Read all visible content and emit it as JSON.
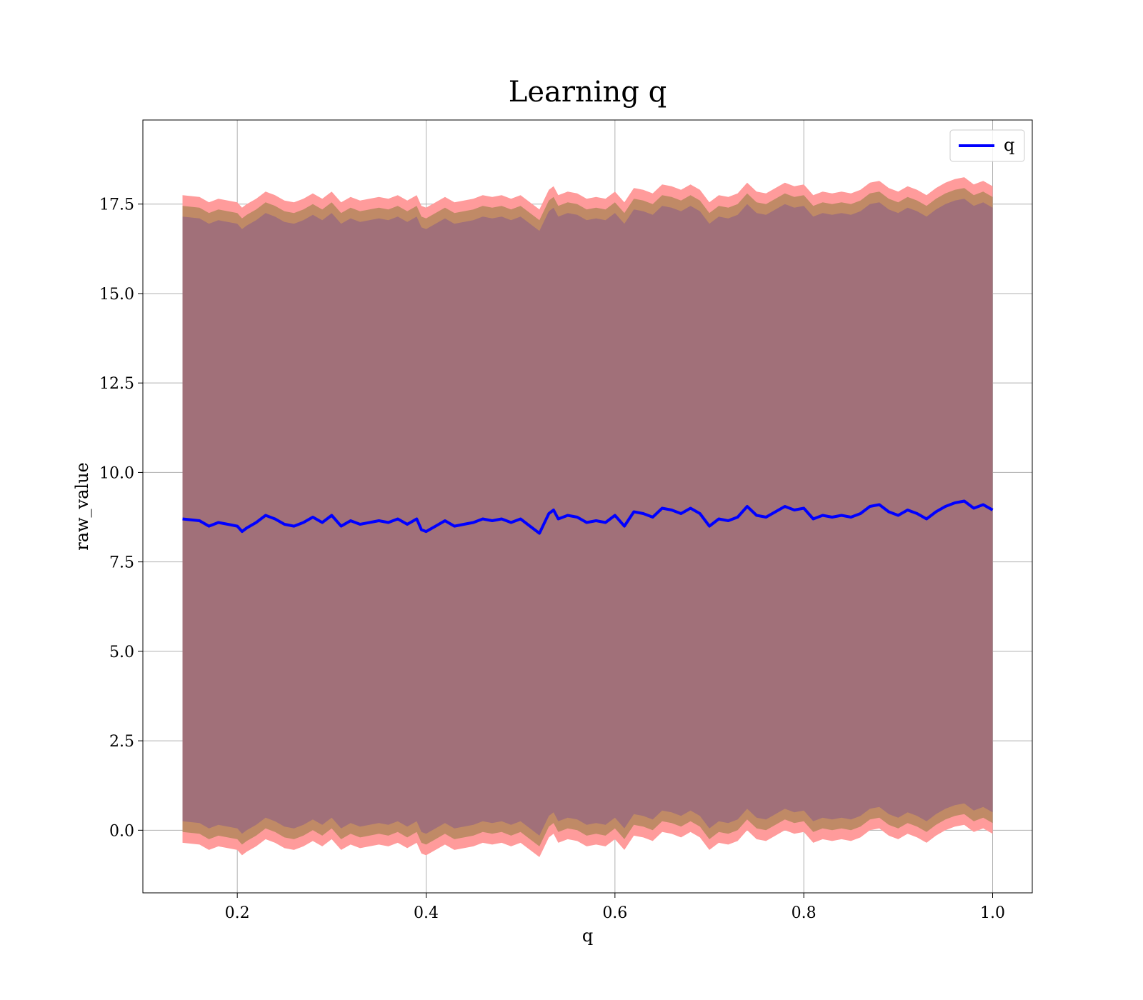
{
  "chart_data": {
    "type": "line",
    "title": "Learning q",
    "xlabel": "q",
    "ylabel": "raw_value",
    "xlim": [
      0.1,
      1.042
    ],
    "ylim": [
      -1.75,
      19.85
    ],
    "xticks": [
      0.2,
      0.4,
      0.6,
      0.8,
      1.0
    ],
    "xtick_labels": [
      "0.2",
      "0.4",
      "0.6",
      "0.8",
      "1.0"
    ],
    "yticks": [
      0.0,
      2.5,
      5.0,
      7.5,
      10.0,
      12.5,
      15.0,
      17.5
    ],
    "ytick_labels": [
      "0.0",
      "2.5",
      "5.0",
      "7.5",
      "10.0",
      "12.5",
      "15.0",
      "17.5"
    ],
    "grid": true,
    "legend": {
      "position": "top-right",
      "entries": [
        "q"
      ]
    },
    "colors": {
      "line": "#0000ff",
      "band_outer": "#ff9b9b",
      "band_middle": "#c08a66",
      "band_inner": "#a17079"
    },
    "band_half_widths": [
      9.05,
      8.75,
      8.45
    ],
    "series": [
      {
        "name": "q",
        "x": [
          0.142,
          0.16,
          0.17,
          0.18,
          0.19,
          0.2,
          0.205,
          0.21,
          0.22,
          0.23,
          0.24,
          0.25,
          0.26,
          0.27,
          0.28,
          0.29,
          0.3,
          0.31,
          0.32,
          0.33,
          0.34,
          0.35,
          0.36,
          0.37,
          0.38,
          0.39,
          0.395,
          0.4,
          0.41,
          0.42,
          0.43,
          0.44,
          0.45,
          0.46,
          0.47,
          0.48,
          0.49,
          0.5,
          0.51,
          0.52,
          0.53,
          0.535,
          0.54,
          0.55,
          0.56,
          0.57,
          0.58,
          0.59,
          0.6,
          0.61,
          0.62,
          0.63,
          0.64,
          0.65,
          0.66,
          0.67,
          0.68,
          0.69,
          0.7,
          0.71,
          0.72,
          0.73,
          0.74,
          0.75,
          0.76,
          0.77,
          0.78,
          0.79,
          0.8,
          0.81,
          0.82,
          0.83,
          0.84,
          0.85,
          0.86,
          0.87,
          0.88,
          0.89,
          0.9,
          0.91,
          0.92,
          0.93,
          0.94,
          0.95,
          0.96,
          0.97,
          0.98,
          0.99,
          1.0
        ],
        "y": [
          8.7,
          8.65,
          8.5,
          8.6,
          8.55,
          8.5,
          8.35,
          8.45,
          8.6,
          8.8,
          8.7,
          8.55,
          8.5,
          8.6,
          8.75,
          8.6,
          8.8,
          8.5,
          8.65,
          8.55,
          8.6,
          8.65,
          8.6,
          8.7,
          8.55,
          8.7,
          8.4,
          8.35,
          8.5,
          8.65,
          8.5,
          8.55,
          8.6,
          8.7,
          8.65,
          8.7,
          8.6,
          8.7,
          8.5,
          8.3,
          8.85,
          8.95,
          8.7,
          8.8,
          8.75,
          8.6,
          8.65,
          8.6,
          8.8,
          8.5,
          8.9,
          8.85,
          8.75,
          9.0,
          8.95,
          8.85,
          9.0,
          8.85,
          8.5,
          8.7,
          8.65,
          8.75,
          9.05,
          8.8,
          8.75,
          8.9,
          9.05,
          8.95,
          9.0,
          8.7,
          8.8,
          8.75,
          8.8,
          8.75,
          8.85,
          9.05,
          9.1,
          8.9,
          8.8,
          8.95,
          8.85,
          8.7,
          8.9,
          9.05,
          9.15,
          9.2,
          9.0,
          9.1,
          8.95
        ]
      }
    ]
  }
}
